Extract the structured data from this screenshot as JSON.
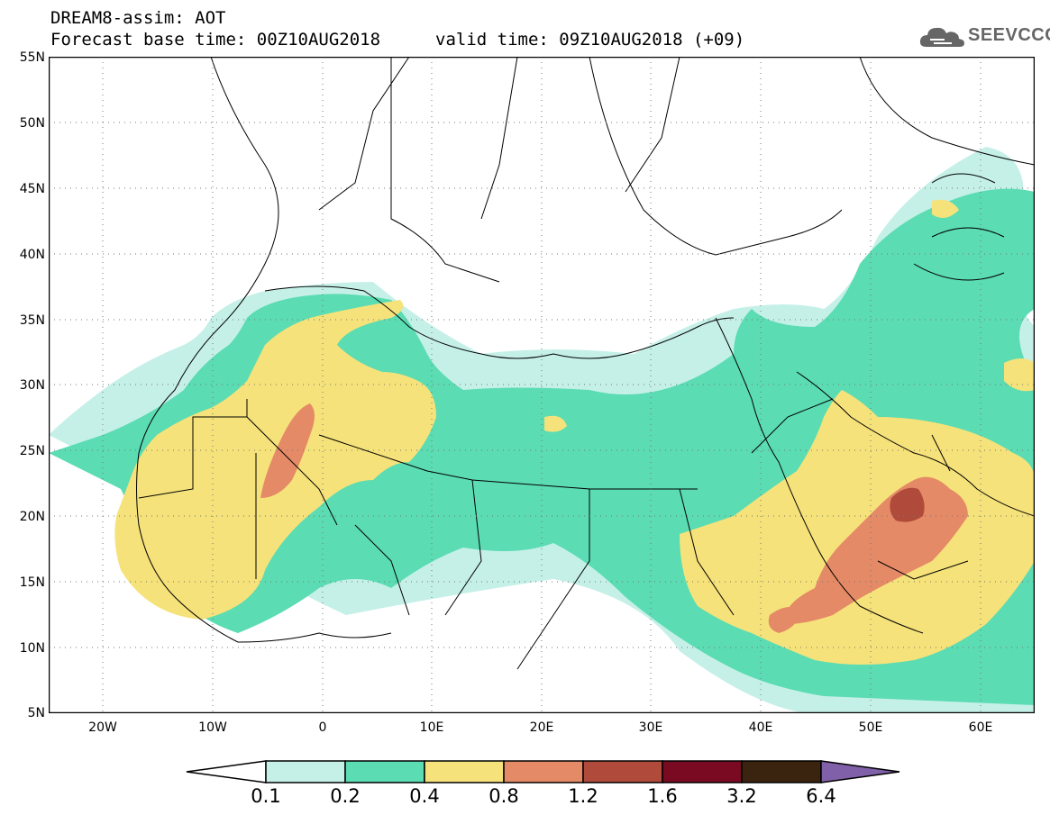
{
  "header": {
    "title": "DREAM8-assim: AOT",
    "base_time": "Forecast base time: 00Z10AUG2018",
    "valid_time": "valid time: 09Z10AUG2018 (+09)",
    "logo_text": "SEEVCCC",
    "logo_icon": "cloud-icon"
  },
  "map": {
    "lat_labels": [
      "55N",
      "50N",
      "45N",
      "40N",
      "35N",
      "30N",
      "25N",
      "20N",
      "15N",
      "10N",
      "5N"
    ],
    "lon_labels": [
      "20W",
      "10W",
      "0",
      "10E",
      "20E",
      "30E",
      "40E",
      "50E",
      "60E"
    ],
    "lat_range": [
      5,
      55
    ],
    "lon_range": [
      -25,
      65
    ]
  },
  "colorbar": {
    "labels": [
      "0.1",
      "0.2",
      "0.4",
      "0.8",
      "1.2",
      "1.6",
      "3.2",
      "6.4"
    ],
    "colors": [
      "#c5f0e8",
      "#5bdcb2",
      "#f6e27a",
      "#e58a66",
      "#b04a3a",
      "#7a0a22",
      "#3a2410",
      "#8060a8"
    ],
    "under_color": "#ffffff"
  }
}
